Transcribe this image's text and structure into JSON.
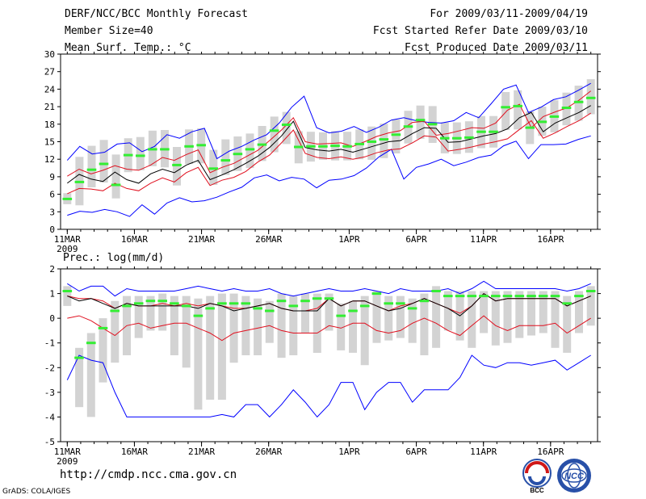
{
  "header": {
    "title": "DERF/NCC/BCC Monthly Forecast",
    "member_size": "Member Size=40",
    "variable_temp": "Mean Surf. Temp.: °C",
    "period": "For 2009/03/11-2009/04/19",
    "start_date": "Fcst Started Refer Date 2009/03/10",
    "produced_date": "Fcst Produced Date 2009/03/11"
  },
  "footer": {
    "url": "http://cmdp.ncc.cma.gov.cn",
    "credit": "GrADS: COLA/IGES",
    "logo_bcc": "BCC",
    "logo_ncc": "NCC"
  },
  "colors": {
    "bar": "#d3d3d3",
    "marker": "#33ee33",
    "envelope": "#0000ff",
    "band": "#e0101f",
    "mean": "#000000"
  },
  "chart_data": [
    {
      "type": "line",
      "title": "Mean Surf. Temp.: °C",
      "ylim": [
        0,
        30
      ],
      "yticks": [
        0,
        3,
        6,
        9,
        12,
        15,
        18,
        21,
        24,
        27,
        30
      ],
      "xticks": [
        {
          "day": 0,
          "label": "11MAR",
          "year": "2009"
        },
        {
          "day": 5,
          "label": "16MAR"
        },
        {
          "day": 10,
          "label": "21MAR"
        },
        {
          "day": 15,
          "label": "26MAR"
        },
        {
          "day": 21,
          "label": "1APR"
        },
        {
          "day": 26,
          "label": "6APR"
        },
        {
          "day": 31,
          "label": "11APR"
        },
        {
          "day": 36,
          "label": "16APR"
        }
      ],
      "days": 40,
      "series": [
        {
          "name": "max",
          "values": [
            11.8,
            14.2,
            12.9,
            13.2,
            14.6,
            14.8,
            13.3,
            14.2,
            16.2,
            15.6,
            16.7,
            17.3,
            12.1,
            13.4,
            14.2,
            15.3,
            16.2,
            18.2,
            20.9,
            22.8,
            17.4,
            16.5,
            16.8,
            17.6,
            16.6,
            17.5,
            18.7,
            19.1,
            18.6,
            18.3,
            18.2,
            18.6,
            20.0,
            19.1,
            21.5,
            24.0,
            24.7,
            20.0,
            20.9,
            22.2,
            22.7,
            23.8,
            25.0
          ]
        },
        {
          "name": "upper",
          "values": [
            9.1,
            10.3,
            9.5,
            10.1,
            10.9,
            10.3,
            10.1,
            11.0,
            12.3,
            11.8,
            12.8,
            13.6,
            9.7,
            10.6,
            11.3,
            12.4,
            13.5,
            15.2,
            17.0,
            19.1,
            15.0,
            14.6,
            14.7,
            14.8,
            14.2,
            15.0,
            15.9,
            16.5,
            16.9,
            18.3,
            18.5,
            16.1,
            16.4,
            16.9,
            17.4,
            17.3,
            18.2,
            20.4,
            21.4,
            17.4,
            19.3,
            20.1,
            20.8,
            22.1,
            23.7
          ]
        },
        {
          "name": "mean",
          "values": [
            7.9,
            9.4,
            8.6,
            8.2,
            9.8,
            8.5,
            7.9,
            9.5,
            10.3,
            9.7,
            11.0,
            11.8,
            8.5,
            9.3,
            10.2,
            11.3,
            12.5,
            14.0,
            16.0,
            18.5,
            14.0,
            13.6,
            13.4,
            13.7,
            13.2,
            13.8,
            14.4,
            15.0,
            15.2,
            16.4,
            17.4,
            17.3,
            14.9,
            15.0,
            15.5,
            16.0,
            16.4,
            17.2,
            19.1,
            20.0,
            16.7,
            18.2,
            19.1,
            20.0,
            21.2
          ]
        },
        {
          "name": "lower",
          "values": [
            6.1,
            7.0,
            6.9,
            6.6,
            7.9,
            7.0,
            6.6,
            7.9,
            8.8,
            8.1,
            9.7,
            10.6,
            7.5,
            8.4,
            8.9,
            9.9,
            11.5,
            12.7,
            14.8,
            17.0,
            13.0,
            12.3,
            12.1,
            12.4,
            12.0,
            12.4,
            13.1,
            13.6,
            13.8,
            14.8,
            16.0,
            15.8,
            13.4,
            13.7,
            14.1,
            14.6,
            15.0,
            15.5,
            17.1,
            18.6,
            15.6,
            16.5,
            17.6,
            18.6,
            19.9
          ]
        },
        {
          "name": "min",
          "values": [
            2.4,
            3.1,
            2.9,
            3.4,
            3.0,
            2.2,
            4.2,
            2.6,
            4.5,
            5.4,
            4.7,
            4.9,
            5.5,
            6.4,
            7.2,
            8.8,
            9.3,
            8.3,
            8.9,
            8.6,
            7.1,
            8.4,
            8.6,
            9.2,
            10.5,
            12.4,
            13.7,
            8.6,
            10.6,
            11.2,
            12.0,
            10.9,
            11.5,
            12.3,
            12.7,
            14.3,
            15.1,
            12.1,
            14.5,
            14.5,
            14.6,
            15.4,
            16.0
          ]
        },
        {
          "name": "observed",
          "values": [
            5.2,
            8.1,
            10.2,
            11.2,
            7.6,
            12.7,
            12.6,
            13.7,
            13.7,
            11.0,
            14.2,
            14.4,
            10.4,
            11.8,
            12.9,
            13.7,
            14.5,
            16.9,
            17.9,
            14.1,
            14.2,
            14.2,
            14.3,
            14.2,
            14.6,
            15.0,
            15.4,
            16.2,
            17.6,
            18.7,
            18.0,
            15.6,
            15.6,
            15.7,
            16.7,
            16.7,
            20.9,
            21.1,
            17.4,
            18.4,
            19.3,
            20.8,
            21.8,
            22.5
          ]
        },
        {
          "name": "range_low",
          "values": [
            4.3,
            4.1,
            7.2,
            8.0,
            5.3,
            9.8,
            10.1,
            10.8,
            10.6,
            7.5,
            11.2,
            11.3,
            7.6,
            9.3,
            10.0,
            10.5,
            11.7,
            13.2,
            14.6,
            11.3,
            11.6,
            11.9,
            11.8,
            11.8,
            12.0,
            11.9,
            12.2,
            13.0,
            14.7,
            15.5,
            14.8,
            13.0,
            12.9,
            13.1,
            13.9,
            14.0,
            17.0,
            17.1,
            14.6,
            16.0,
            16.6,
            17.8,
            18.6,
            19.7
          ]
        },
        {
          "name": "range_high",
          "values": [
            6.2,
            12.4,
            14.3,
            15.3,
            12.8,
            15.6,
            15.8,
            16.9,
            17.0,
            14.1,
            17.1,
            17.3,
            13.6,
            15.4,
            15.9,
            16.4,
            17.7,
            19.3,
            20.1,
            16.8,
            16.7,
            16.6,
            16.8,
            16.7,
            17.1,
            17.6,
            18.1,
            18.8,
            20.3,
            21.2,
            21.1,
            18.3,
            18.3,
            18.5,
            19.4,
            19.4,
            23.5,
            23.8,
            20.2,
            21.0,
            22.1,
            23.4,
            24.6,
            25.7
          ]
        }
      ]
    },
    {
      "type": "line",
      "title": "Prec.: log(mm/d)",
      "ylim": [
        -5,
        2
      ],
      "yticks": [
        -5,
        -4,
        -3,
        -2,
        -1,
        0,
        1,
        2
      ],
      "xticks": [
        {
          "day": 0,
          "label": "11MAR",
          "year": "2009"
        },
        {
          "day": 5,
          "label": "16MAR"
        },
        {
          "day": 10,
          "label": "21MAR"
        },
        {
          "day": 15,
          "label": "26MAR"
        },
        {
          "day": 21,
          "label": "1APR"
        },
        {
          "day": 26,
          "label": "6APR"
        },
        {
          "day": 31,
          "label": "11APR"
        },
        {
          "day": 36,
          "label": "16APR"
        }
      ],
      "days": 40,
      "series": [
        {
          "name": "max",
          "values": [
            1.4,
            1.1,
            1.3,
            1.3,
            0.9,
            1.2,
            1.1,
            1.1,
            1.1,
            1.1,
            1.2,
            1.3,
            1.2,
            1.1,
            1.2,
            1.1,
            1.1,
            1.2,
            1.0,
            0.9,
            1.0,
            1.1,
            1.2,
            1.1,
            1.1,
            1.2,
            1.1,
            1.0,
            1.2,
            1.1,
            1.1,
            1.1,
            1.2,
            1.0,
            1.2,
            1.5,
            1.2,
            1.2,
            1.2,
            1.2,
            1.2,
            1.2,
            1.1,
            1.2,
            1.4
          ]
        },
        {
          "name": "mean",
          "values": [
            0.9,
            0.7,
            0.8,
            0.6,
            0.4,
            0.6,
            0.5,
            0.5,
            0.5,
            0.5,
            0.5,
            0.4,
            0.6,
            0.5,
            0.3,
            0.4,
            0.5,
            0.6,
            0.4,
            0.3,
            0.3,
            0.3,
            0.8,
            0.5,
            0.7,
            0.7,
            0.5,
            0.3,
            0.4,
            0.6,
            0.8,
            0.6,
            0.4,
            0.1,
            0.5,
            1.0,
            0.7,
            0.8,
            0.8,
            0.8,
            0.8,
            0.8,
            0.5,
            0.7,
            0.9
          ]
        },
        {
          "name": "band_upper",
          "values": [
            0.9,
            0.8,
            0.8,
            0.7,
            0.4,
            0.6,
            0.5,
            0.5,
            0.6,
            0.5,
            0.6,
            0.5,
            0.6,
            0.5,
            0.4,
            0.4,
            0.5,
            0.6,
            0.4,
            0.3,
            0.3,
            0.4,
            0.8,
            0.5,
            0.7,
            0.7,
            0.5,
            0.3,
            0.5,
            0.6,
            0.8,
            0.6,
            0.4,
            0.2,
            0.5,
            1.0,
            0.7,
            0.8,
            0.8,
            0.8,
            0.8,
            0.8,
            0.5,
            0.7,
            0.9
          ]
        },
        {
          "name": "band_lower",
          "values": [
            0.0,
            0.1,
            -0.1,
            -0.4,
            -0.7,
            -0.3,
            -0.2,
            -0.4,
            -0.3,
            -0.2,
            -0.2,
            -0.4,
            -0.6,
            -0.9,
            -0.6,
            -0.5,
            -0.4,
            -0.3,
            -0.5,
            -0.6,
            -0.6,
            -0.6,
            -0.3,
            -0.4,
            -0.2,
            -0.2,
            -0.5,
            -0.6,
            -0.5,
            -0.2,
            0.0,
            -0.2,
            -0.5,
            -0.7,
            -0.3,
            0.1,
            -0.3,
            -0.5,
            -0.3,
            -0.3,
            -0.3,
            -0.2,
            -0.6,
            -0.3,
            0.0
          ]
        },
        {
          "name": "min",
          "values": [
            -2.5,
            -1.5,
            -1.7,
            -1.8,
            -3.0,
            -4.0,
            -4.0,
            -4.0,
            -4.0,
            -4.0,
            -4.0,
            -4.0,
            -4.0,
            -3.9,
            -4.0,
            -3.5,
            -3.5,
            -4.0,
            -3.5,
            -2.9,
            -3.4,
            -4.0,
            -3.5,
            -2.6,
            -2.6,
            -3.7,
            -3.0,
            -2.6,
            -2.6,
            -3.4,
            -2.9,
            -2.9,
            -2.9,
            -2.4,
            -1.5,
            -1.9,
            -2.0,
            -1.8,
            -1.8,
            -1.9,
            -1.8,
            -1.7,
            -2.1,
            -1.8,
            -1.5
          ]
        },
        {
          "name": "observed",
          "values": [
            1.1,
            -1.6,
            -1.0,
            -0.4,
            0.3,
            0.5,
            0.6,
            0.7,
            0.7,
            0.6,
            0.5,
            0.1,
            0.4,
            0.6,
            0.6,
            0.6,
            0.4,
            0.3,
            0.7,
            0.5,
            0.7,
            0.8,
            0.8,
            0.1,
            0.3,
            0.5,
            1.0,
            0.6,
            0.6,
            0.4,
            0.7,
            1.1,
            0.9,
            0.9,
            0.9,
            0.9,
            0.9,
            0.9,
            0.9,
            0.9,
            0.9,
            0.9,
            0.6,
            0.9,
            1.1
          ]
        },
        {
          "name": "range_low",
          "values": [
            0.5,
            -3.6,
            -4.0,
            -2.6,
            -1.8,
            -1.5,
            -0.8,
            -0.5,
            -0.5,
            -1.5,
            -2.0,
            -3.7,
            -3.3,
            -3.3,
            -1.8,
            -1.5,
            -1.5,
            -1.0,
            -1.6,
            -1.5,
            -0.6,
            -1.4,
            -0.5,
            -1.3,
            -1.4,
            -1.9,
            -1.0,
            -0.9,
            -0.8,
            -1.0,
            -1.5,
            -1.2,
            -0.5,
            -0.9,
            -1.2,
            -0.6,
            -1.1,
            -1.0,
            -0.8,
            -0.7,
            -0.6,
            -1.2,
            -1.4,
            -0.6,
            -0.3
          ]
        },
        {
          "name": "range_high",
          "values": [
            1.3,
            -1.2,
            -0.6,
            0.0,
            0.7,
            0.9,
            0.9,
            0.9,
            1.0,
            0.9,
            0.9,
            0.8,
            0.9,
            1.0,
            1.0,
            0.9,
            0.8,
            0.7,
            1.0,
            0.9,
            1.0,
            1.0,
            1.0,
            0.6,
            0.7,
            0.9,
            1.1,
            0.9,
            0.9,
            0.8,
            1.0,
            1.3,
            1.1,
            1.1,
            1.1,
            1.1,
            1.1,
            1.1,
            1.1,
            1.1,
            1.1,
            1.1,
            0.9,
            1.1,
            1.3
          ]
        }
      ]
    }
  ]
}
